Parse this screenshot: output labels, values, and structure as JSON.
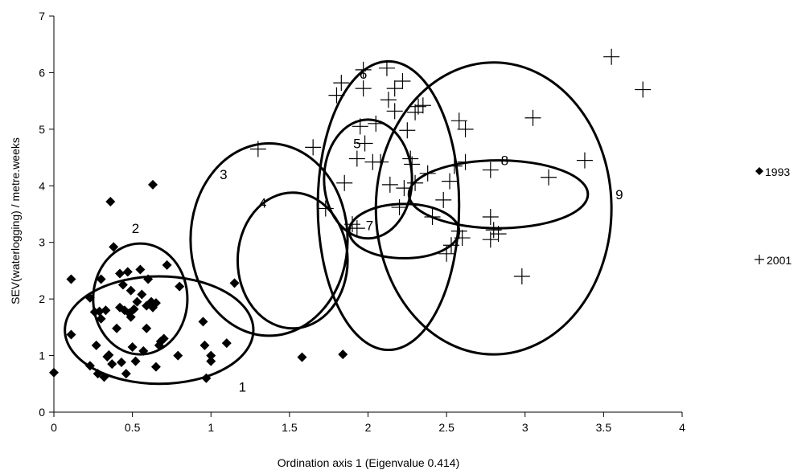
{
  "chart_data": {
    "type": "scatter",
    "title": "",
    "xlabel": "Ordination axis 1 (Eigenvalue 0.414)",
    "ylabel": "SEV(waterlogging) / metre.weeks",
    "xlim": [
      0,
      4
    ],
    "ylim": [
      0,
      7
    ],
    "x_ticks": [
      "0",
      "0.5",
      "1",
      "1.5",
      "2",
      "2.5",
      "3",
      "3.5",
      "4"
    ],
    "y_ticks": [
      "0",
      "1",
      "2",
      "3",
      "4",
      "5",
      "6",
      "7"
    ],
    "grid": false,
    "legend_position": "right",
    "series": [
      {
        "name": "1993",
        "marker": "diamond",
        "color": "#000000",
        "points": [
          [
            0,
            0.7
          ],
          [
            0.11,
            2.35
          ],
          [
            0.11,
            1.37
          ],
          [
            0.23,
            0.82
          ],
          [
            0.23,
            2.02
          ],
          [
            0.26,
            1.77
          ],
          [
            0.27,
            1.18
          ],
          [
            0.28,
            0.68
          ],
          [
            0.29,
            1.78
          ],
          [
            0.3,
            1.65
          ],
          [
            0.3,
            2.35
          ],
          [
            0.32,
            0.62
          ],
          [
            0.33,
            1.8
          ],
          [
            0.34,
            0.98
          ],
          [
            0.35,
            1.01
          ],
          [
            0.36,
            3.72
          ],
          [
            0.37,
            0.85
          ],
          [
            0.38,
            2.92
          ],
          [
            0.4,
            1.48
          ],
          [
            0.42,
            2.45
          ],
          [
            0.42,
            1.85
          ],
          [
            0.43,
            0.88
          ],
          [
            0.44,
            2.25
          ],
          [
            0.45,
            1.8
          ],
          [
            0.46,
            0.68
          ],
          [
            0.47,
            2.48
          ],
          [
            0.48,
            1.75
          ],
          [
            0.49,
            1.68
          ],
          [
            0.49,
            2.15
          ],
          [
            0.5,
            1.15
          ],
          [
            0.51,
            1.82
          ],
          [
            0.52,
            0.9
          ],
          [
            0.53,
            1.95
          ],
          [
            0.55,
            2.52
          ],
          [
            0.56,
            2.08
          ],
          [
            0.57,
            1.08
          ],
          [
            0.59,
            1.48
          ],
          [
            0.59,
            1.88
          ],
          [
            0.6,
            2.35
          ],
          [
            0.62,
            1.95
          ],
          [
            0.63,
            1.85
          ],
          [
            0.63,
            4.02
          ],
          [
            0.65,
            0.8
          ],
          [
            0.65,
            1.93
          ],
          [
            0.67,
            1.18
          ],
          [
            0.68,
            1.25
          ],
          [
            0.7,
            1.3
          ],
          [
            0.72,
            2.6
          ],
          [
            0.79,
            1.0
          ],
          [
            0.8,
            2.22
          ],
          [
            0.95,
            1.6
          ],
          [
            0.96,
            1.18
          ],
          [
            0.97,
            0.6
          ],
          [
            1.0,
            1.0
          ],
          [
            1.0,
            0.9
          ],
          [
            1.1,
            1.22
          ],
          [
            1.15,
            2.28
          ],
          [
            1.58,
            0.97
          ],
          [
            1.84,
            1.02
          ]
        ]
      },
      {
        "name": "2001",
        "marker": "plus",
        "color": "#000000",
        "points": [
          [
            1.3,
            4.65
          ],
          [
            1.65,
            4.68
          ],
          [
            1.73,
            3.6
          ],
          [
            1.85,
            4.05
          ],
          [
            1.8,
            5.6
          ],
          [
            1.83,
            5.82
          ],
          [
            1.9,
            3.32
          ],
          [
            1.93,
            3.25
          ],
          [
            1.93,
            4.48
          ],
          [
            1.95,
            5.05
          ],
          [
            1.97,
            5.72
          ],
          [
            1.97,
            6.05
          ],
          [
            1.98,
            4.75
          ],
          [
            2.03,
            4.42
          ],
          [
            2.05,
            5.1
          ],
          [
            2.08,
            4.42
          ],
          [
            2.12,
            6.08
          ],
          [
            2.13,
            5.52
          ],
          [
            2.14,
            4.02
          ],
          [
            2.17,
            5.32
          ],
          [
            2.17,
            5.72
          ],
          [
            2.2,
            3.62
          ],
          [
            2.22,
            5.85
          ],
          [
            2.23,
            3.96
          ],
          [
            2.25,
            4.98
          ],
          [
            2.27,
            4.48
          ],
          [
            2.28,
            4.38
          ],
          [
            2.3,
            5.3
          ],
          [
            2.3,
            4.05
          ],
          [
            2.32,
            5.4
          ],
          [
            2.35,
            5.42
          ],
          [
            2.38,
            4.22
          ],
          [
            2.41,
            3.45
          ],
          [
            2.48,
            3.75
          ],
          [
            2.5,
            2.8
          ],
          [
            2.52,
            4.08
          ],
          [
            2.53,
            2.95
          ],
          [
            2.55,
            4.35
          ],
          [
            2.58,
            5.15
          ],
          [
            2.58,
            3.2
          ],
          [
            2.6,
            3.08
          ],
          [
            2.62,
            4.42
          ],
          [
            2.62,
            5.0
          ],
          [
            2.78,
            4.28
          ],
          [
            2.78,
            3.45
          ],
          [
            2.78,
            3.05
          ],
          [
            2.8,
            3.22
          ],
          [
            2.83,
            3.15
          ],
          [
            2.98,
            2.4
          ],
          [
            3.05,
            5.2
          ],
          [
            3.15,
            4.15
          ],
          [
            3.38,
            4.45
          ],
          [
            3.55,
            6.28
          ],
          [
            3.75,
            5.7
          ]
        ]
      }
    ],
    "ellipses": [
      {
        "label": "1",
        "cx": 0.67,
        "cy": 1.45,
        "rx": 0.6,
        "ry": 0.95,
        "label_x": 1.2,
        "label_y": 0.45
      },
      {
        "label": "2",
        "cx": 0.55,
        "cy": 2.0,
        "rx": 0.3,
        "ry": 0.98,
        "label_x": 0.52,
        "label_y": 3.25
      },
      {
        "label": "3",
        "cx": 1.37,
        "cy": 3.05,
        "rx": 0.5,
        "ry": 1.7,
        "label_x": 1.08,
        "label_y": 4.2
      },
      {
        "label": "4",
        "cx": 1.52,
        "cy": 2.68,
        "rx": 0.35,
        "ry": 1.2,
        "label_x": 1.33,
        "label_y": 3.7
      },
      {
        "label": "5",
        "cx": 2.0,
        "cy": 4.12,
        "rx": 0.28,
        "ry": 1.05,
        "label_x": 1.93,
        "label_y": 4.75
      },
      {
        "label": "6",
        "cx": 2.13,
        "cy": 3.65,
        "rx": 0.45,
        "ry": 2.55,
        "label_x": 1.97,
        "label_y": 5.98
      },
      {
        "label": "7",
        "cx": 2.23,
        "cy": 3.2,
        "rx": 0.35,
        "ry": 0.48,
        "label_x": 2.01,
        "label_y": 3.3
      },
      {
        "label": "8",
        "cx": 2.83,
        "cy": 3.85,
        "rx": 0.57,
        "ry": 0.6,
        "label_x": 2.87,
        "label_y": 4.45
      },
      {
        "label": "9",
        "cx": 2.8,
        "cy": 3.6,
        "rx": 0.75,
        "ry": 2.58,
        "label_x": 3.6,
        "label_y": 3.85
      }
    ]
  }
}
